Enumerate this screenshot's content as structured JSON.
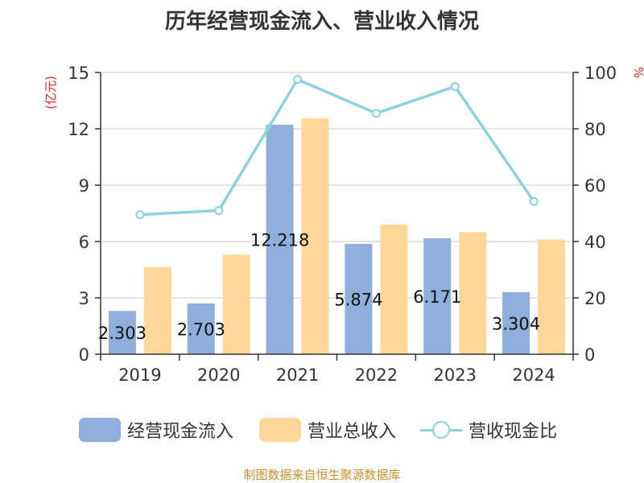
{
  "chart_data": {
    "type": "bar",
    "title": "历年经营现金流入、营业收入情况",
    "categories": [
      "2019",
      "2020",
      "2021",
      "2022",
      "2023",
      "2024"
    ],
    "y_left_label": "(亿元)",
    "y_right_label": "%",
    "y_left_lim": [
      0,
      15
    ],
    "y_left_ticks": [
      0,
      3,
      6,
      9,
      12,
      15
    ],
    "y_right_lim": [
      0,
      100
    ],
    "y_right_ticks": [
      0,
      20,
      40,
      60,
      80,
      100
    ],
    "grid": true,
    "legend_position": "bottom",
    "series": [
      {
        "name": "经营现金流入",
        "kind": "bar",
        "axis": "left",
        "color": "#8eaedb",
        "values": [
          2.303,
          2.703,
          12.218,
          5.874,
          6.171,
          3.304
        ],
        "labels": [
          "2.303",
          "2.703",
          "12.218",
          "5.874",
          "6.171",
          "3.304"
        ]
      },
      {
        "name": "营业总收入",
        "kind": "bar",
        "axis": "left",
        "color": "#ffd899",
        "values": [
          4.65,
          5.3,
          12.55,
          6.9,
          6.5,
          6.1
        ]
      },
      {
        "name": "营收现金比",
        "kind": "line",
        "axis": "right",
        "color": "#8bd3dc",
        "values": [
          49.5,
          51.0,
          97.5,
          85.5,
          95.0,
          54.2
        ]
      }
    ]
  },
  "legend": {
    "item1": "经营现金流入",
    "item2": "营业总收入",
    "item3": "营收现金比"
  },
  "source": "制图数据来自恒生聚源数据库"
}
